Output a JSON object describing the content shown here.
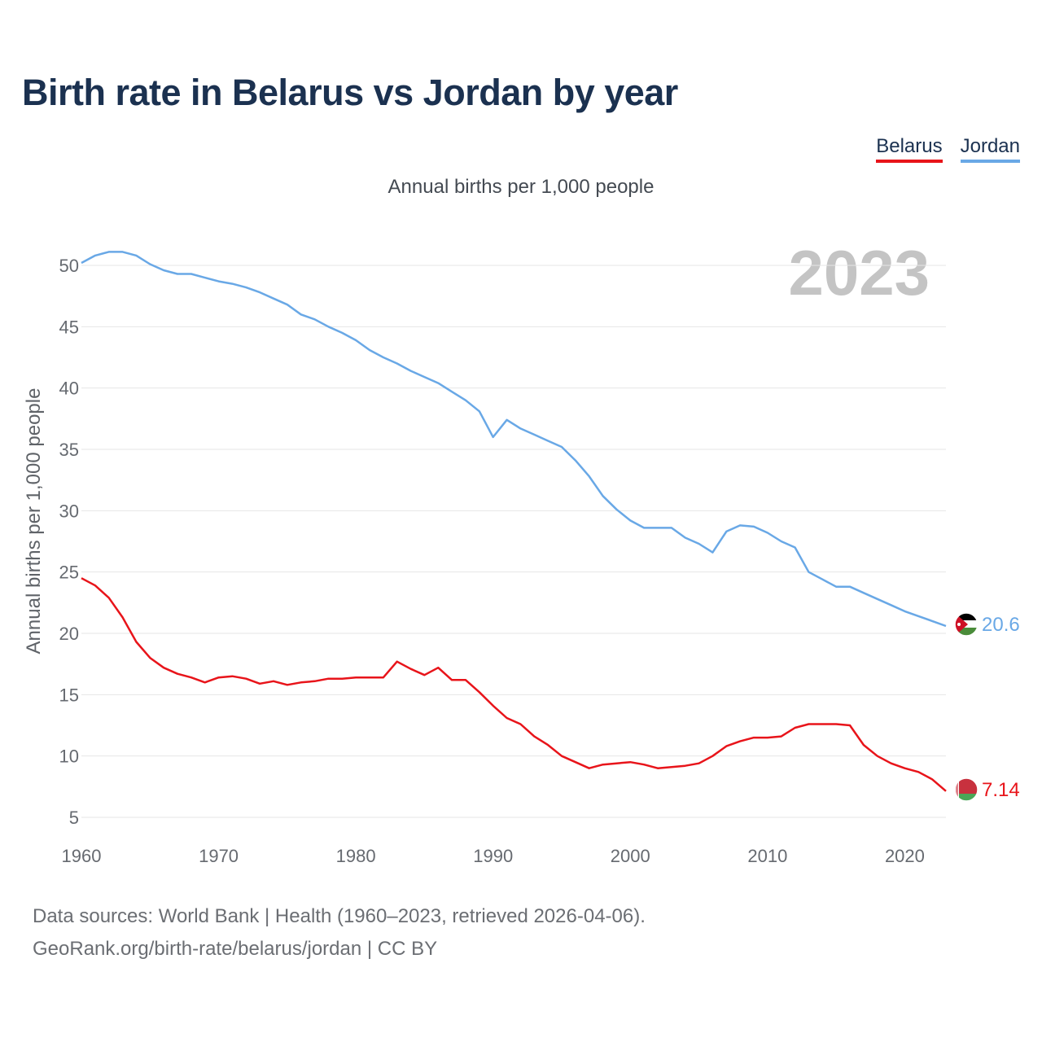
{
  "title": "Birth rate in Belarus vs Jordan by year",
  "legend": {
    "belarus": "Belarus",
    "jordan": "Jordan"
  },
  "subtitle": "Annual births per 1,000 people",
  "colors": {
    "belarus": "#e8141a",
    "jordan": "#69a8e6",
    "title": "#1b3150",
    "grid": "#e6e6e6"
  },
  "year_label": "2023",
  "end_labels": {
    "belarus": "7.14",
    "jordan": "20.6"
  },
  "source": {
    "line1": "Data sources: World Bank | Health (1960–2023, retrieved 2026-04-06).",
    "line2": "GeoRank.org/birth-rate/belarus/jordan | CC BY"
  },
  "chart_data": {
    "type": "line",
    "title": "Birth rate in Belarus vs Jordan by year",
    "xlabel": "",
    "ylabel": "Annual births per 1,000 people",
    "xlim": [
      1960,
      2023
    ],
    "ylim": [
      5,
      52
    ],
    "yticks": [
      5,
      10,
      15,
      20,
      25,
      30,
      35,
      40,
      45,
      50
    ],
    "xticks": [
      1960,
      1970,
      1980,
      1990,
      2000,
      2010,
      2020
    ],
    "grid": true,
    "x_start": 1960,
    "series": [
      {
        "name": "Belarus",
        "key": "belarus",
        "values": [
          24.5,
          23.9,
          22.9,
          21.3,
          19.3,
          18.0,
          17.2,
          16.7,
          16.4,
          16.0,
          16.4,
          16.5,
          16.3,
          15.9,
          16.1,
          15.8,
          16.0,
          16.1,
          16.3,
          16.3,
          16.4,
          16.4,
          16.4,
          17.7,
          17.1,
          16.6,
          17.2,
          16.2,
          16.2,
          15.2,
          14.1,
          13.1,
          12.6,
          11.6,
          10.9,
          10.0,
          9.5,
          9.0,
          9.3,
          9.4,
          9.5,
          9.3,
          9.0,
          9.1,
          9.2,
          9.4,
          10.0,
          10.8,
          11.2,
          11.5,
          11.5,
          11.6,
          12.3,
          12.6,
          12.6,
          12.6,
          12.5,
          10.9,
          10.0,
          9.4,
          9.0,
          8.7,
          8.1,
          7.14
        ]
      },
      {
        "name": "Jordan",
        "key": "jordan",
        "values": [
          50.2,
          50.8,
          51.1,
          51.1,
          50.8,
          50.1,
          49.6,
          49.3,
          49.3,
          49.0,
          48.7,
          48.5,
          48.2,
          47.8,
          47.3,
          46.8,
          46.0,
          45.6,
          45.0,
          44.5,
          43.9,
          43.1,
          42.5,
          42.0,
          41.4,
          40.9,
          40.4,
          39.7,
          39.0,
          38.1,
          36.0,
          37.4,
          36.7,
          36.2,
          35.7,
          35.2,
          34.1,
          32.8,
          31.2,
          30.1,
          29.2,
          28.6,
          28.6,
          28.6,
          27.8,
          27.3,
          26.6,
          28.3,
          28.8,
          28.7,
          28.2,
          27.5,
          27.0,
          25.0,
          24.4,
          23.8,
          23.8,
          23.3,
          22.8,
          22.3,
          21.8,
          21.4,
          21.0,
          20.6
        ]
      }
    ]
  }
}
